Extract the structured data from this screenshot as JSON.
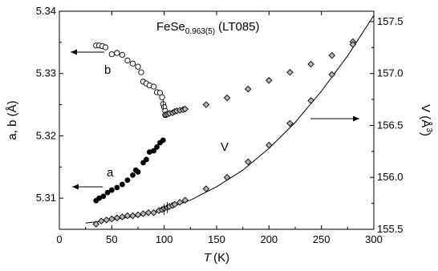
{
  "chart_data": {
    "type": "scatter",
    "title": "FeSe",
    "title_subscript": "0.963(5)",
    "title_suffix": "(LT085)",
    "xlabel_italic": "T",
    "xlabel_unit": "(K)",
    "ylabel_left": "a, b (Å)",
    "ylabel_right": "V (Å",
    "ylabel_right_sup": "3",
    "ylabel_right_close": ")",
    "xlim": [
      0,
      300
    ],
    "ylim_left": [
      5.305,
      5.34
    ],
    "ylim_right": [
      155.5,
      157.6
    ],
    "xticks": [
      0,
      50,
      100,
      150,
      200,
      250,
      300
    ],
    "xtick_labels": [
      "0",
      "50",
      "100",
      "150",
      "200",
      "250",
      "300"
    ],
    "yticks_left": [
      5.31,
      5.32,
      5.33,
      5.34
    ],
    "ytick_labels_left": [
      "5.31",
      "5.32",
      "5.33",
      "5.34"
    ],
    "yticks_right": [
      155.5,
      156.0,
      156.5,
      157.0,
      157.5
    ],
    "ytick_labels_right": [
      "155.5",
      "156.0",
      "156.5",
      "157.0",
      "157.5"
    ],
    "grid": false,
    "annotations": {
      "a": "a",
      "b": "b",
      "V": "V"
    },
    "series": [
      {
        "key": "b",
        "axis": "left",
        "marker": "open-circle",
        "x": [
          35,
          38,
          41,
          44,
          50,
          55,
          60,
          65,
          70,
          75,
          78,
          80,
          83,
          86,
          90,
          93,
          96,
          98,
          99,
          100,
          101
        ],
        "values": [
          5.3345,
          5.3345,
          5.3344,
          5.3342,
          5.3331,
          5.3333,
          5.333,
          5.3321,
          5.3316,
          5.3311,
          5.3302,
          5.3287,
          5.3284,
          5.3281,
          5.3279,
          5.327,
          5.3269,
          5.3262,
          5.3251,
          5.3246,
          5.324
        ]
      },
      {
        "key": "a",
        "axis": "left",
        "marker": "filled-circle",
        "x": [
          35,
          38,
          42,
          46,
          50,
          55,
          60,
          65,
          70,
          73,
          75,
          80,
          83,
          86,
          90,
          93,
          96,
          99,
          101
        ],
        "values": [
          5.3096,
          5.31,
          5.3103,
          5.3109,
          5.3113,
          5.3117,
          5.3122,
          5.3129,
          5.3137,
          5.3145,
          5.3142,
          5.3157,
          5.3162,
          5.3174,
          5.3176,
          5.3182,
          5.3189,
          5.3193,
          5.3233
        ]
      },
      {
        "key": "ab_high",
        "axis": "left",
        "marker": "diamond",
        "x": [
          101,
          103,
          105,
          108,
          110,
          112,
          115,
          118,
          120,
          140,
          160,
          180,
          200,
          220,
          240,
          260,
          280
        ],
        "values": [
          5.3234,
          5.3235,
          5.3236,
          5.3237,
          5.3239,
          5.324,
          5.3241,
          5.3242,
          5.3243,
          5.325,
          5.3261,
          5.3275,
          5.3289,
          5.3302,
          5.3315,
          5.3329,
          5.3351
        ]
      },
      {
        "key": "V",
        "axis": "right",
        "marker": "diamond",
        "x": [
          35,
          40,
          45,
          50,
          55,
          60,
          65,
          70,
          75,
          80,
          85,
          90,
          95,
          98,
          100,
          103,
          105,
          108,
          110,
          115,
          120,
          140,
          160,
          180,
          200,
          220,
          240,
          260,
          280
        ],
        "values": [
          155.55,
          155.58,
          155.59,
          155.6,
          155.61,
          155.62,
          155.63,
          155.63,
          155.64,
          155.65,
          155.66,
          155.66,
          155.68,
          155.69,
          155.7,
          155.71,
          155.72,
          155.73,
          155.74,
          155.76,
          155.78,
          155.89,
          156.0,
          156.15,
          156.31,
          156.52,
          156.74,
          156.99,
          157.28
        ]
      }
    ],
    "fit": {
      "axis": "right",
      "x": [
        25,
        50,
        75,
        100,
        125,
        150,
        175,
        200,
        225,
        250,
        275,
        300
      ],
      "values": [
        155.56,
        155.59,
        155.63,
        155.69,
        155.78,
        155.91,
        156.07,
        156.28,
        156.53,
        156.83,
        157.17,
        157.56
      ]
    }
  }
}
